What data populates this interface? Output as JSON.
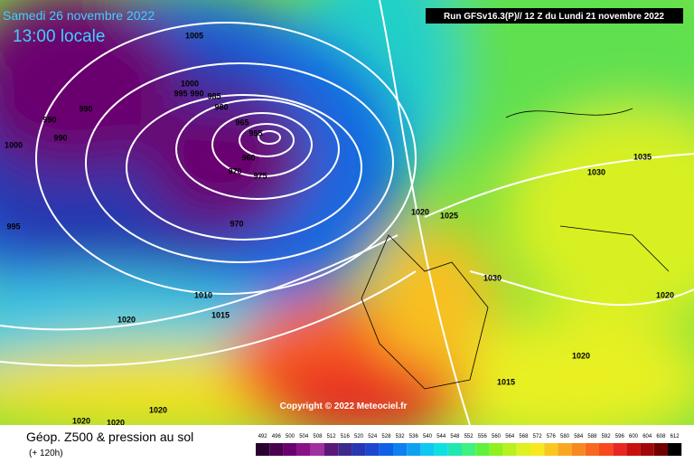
{
  "header": {
    "date": "Samedi 26 novembre 2022",
    "time": "13:00 locale",
    "run": "Run GFSv16.3(P)// 12 Z du Lundi 21 novembre 2022"
  },
  "copyright": "Copyright © 2022 Meteociel.fr",
  "footer": {
    "title": "Géop. Z500 & pression au sol",
    "lead": "(+ 120h)"
  },
  "scale": {
    "labels": [
      492,
      496,
      500,
      504,
      508,
      512,
      516,
      520,
      524,
      528,
      532,
      536,
      540,
      544,
      548,
      552,
      556,
      560,
      564,
      568,
      572,
      576,
      580,
      584,
      588,
      592,
      596,
      600,
      604,
      608,
      612
    ],
    "colors": [
      "#2a0030",
      "#4a0050",
      "#6a0070",
      "#8a108a",
      "#a030a0",
      "#5a1878",
      "#3c2a8c",
      "#2838b0",
      "#1c48d0",
      "#1060e8",
      "#1080f0",
      "#10a0f0",
      "#10c8f0",
      "#10e0e0",
      "#20e8b0",
      "#40f080",
      "#60f040",
      "#90f020",
      "#b8f020",
      "#e0f020",
      "#f8e820",
      "#f8c820",
      "#f8a820",
      "#f88820",
      "#f86820",
      "#f84820",
      "#e82820",
      "#c81010",
      "#a00808",
      "#700000",
      "#000000"
    ]
  },
  "isobar_labels": [
    1005,
    1000,
    995,
    990,
    985,
    980,
    965,
    955,
    960,
    970,
    975,
    970,
    990,
    990,
    990,
    1000,
    995,
    1010,
    1015,
    1020,
    1020,
    1025,
    1030,
    1030,
    1035,
    1020,
    1020,
    1015,
    1020,
    1020,
    1020
  ]
}
